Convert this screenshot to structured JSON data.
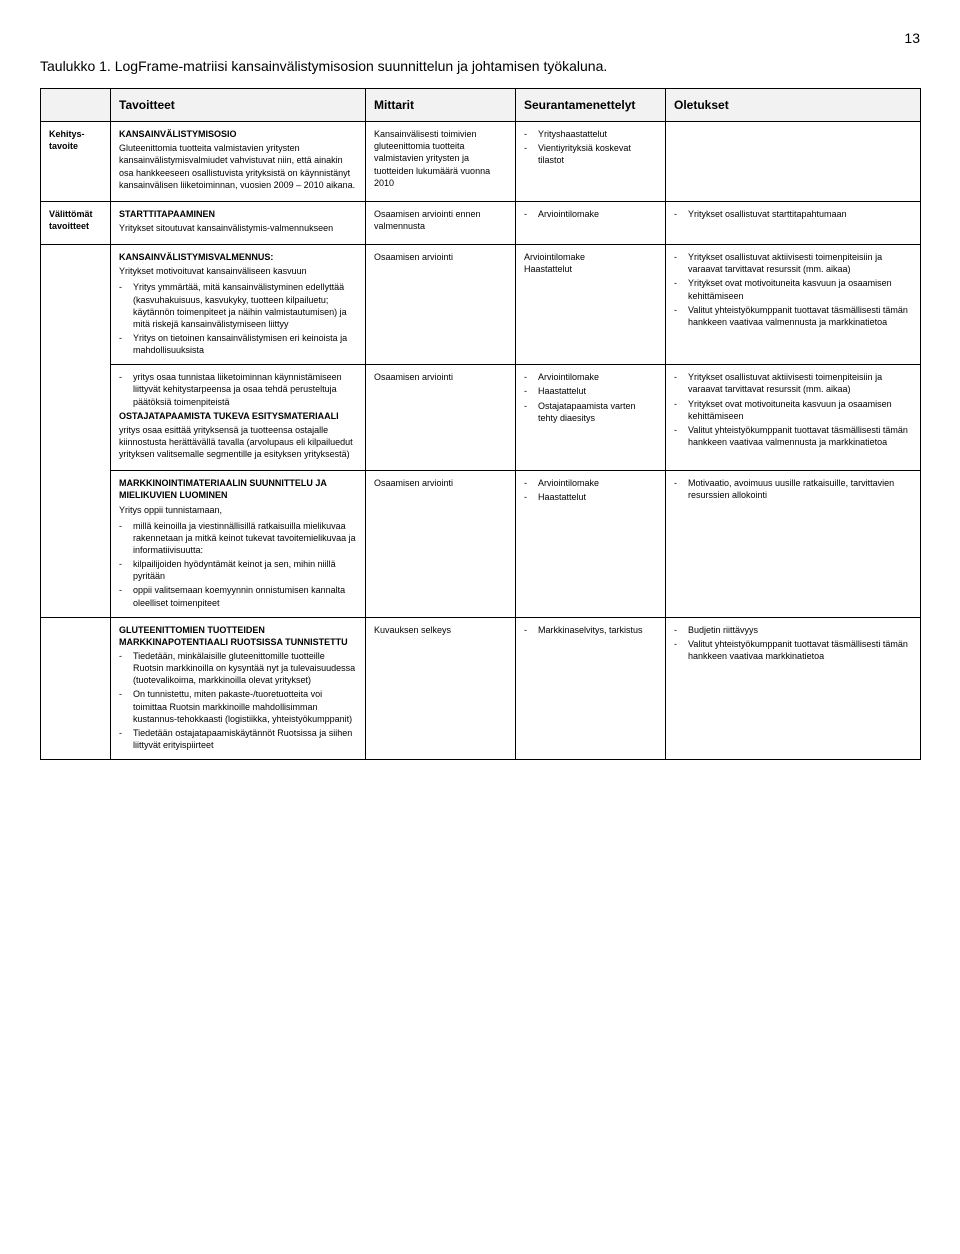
{
  "page_number": "13",
  "doc_title": "Taulukko 1. LogFrame-matriisi kansainvälistymisosion suunnittelun ja johtamisen työkaluna.",
  "headers": {
    "blank": "",
    "tavoitteet": "Tavoitteet",
    "mittarit": "Mittarit",
    "seuranta": "Seurantamenettelyt",
    "oletukset": "Oletukset"
  },
  "rows": {
    "r1": {
      "label": "Kehitys-tavoite",
      "a_head": "KANSAINVÄLISTYMISOSIO",
      "a_body": "Gluteenittomia tuotteita valmistavien yritysten kansainvälistymisvalmiudet vahvistuvat niin, että ainakin osa hankkeeseen osallistuvista yrityksistä on käynnistänyt kansainvälisen liiketoiminnan, vuosien 2009 – 2010 aikana.",
      "b": "Kansainvälisesti toimivien gluteenittomia tuotteita valmistavien yritysten ja tuotteiden lukumäärä vuonna 2010",
      "c_items": [
        "Yrityshaastattelut",
        "Vientiyrityksiä koskevat tilastot"
      ]
    },
    "r2": {
      "label": "Välittömät tavoitteet",
      "a_head": "STARTTITAPAAMINEN",
      "a_body": "Yritykset sitoutuvat kansainvälistymis-valmennukseen",
      "b": "Osaamisen arviointi ennen valmennusta",
      "c_items": [
        "Arviointilomake"
      ],
      "d_items": [
        "Yritykset osallistuvat starttitapahtumaan"
      ]
    },
    "r3": {
      "a_head": "KANSAINVÄLISTYMISVALMENNUS:",
      "a_intro": "Yritykset motivoituvat kansainväliseen kasvuun",
      "a_items": [
        "Yritys ymmärtää, mitä kansainvälistyminen edellyttää (kasvuhakuisuus, kasvukyky, tuotteen kilpailuetu; käytännön toimenpiteet ja näihin valmistautumisen) ja mitä riskejä kansainvälistymiseen liittyy",
        "Yritys on tietoinen kansainvälistymisen eri keinoista ja mahdollisuuksista"
      ],
      "b": "Osaamisen arviointi",
      "c_text": "Arviointilomake\nHaastattelut",
      "d_items": [
        "Yritykset osallistuvat aktiivisesti toimenpiteisiin ja varaavat tarvittavat resurssit (mm. aikaa)",
        "Yritykset ovat motivoituneita kasvuun ja osaamisen kehittämiseen",
        "Valitut yhteistyökumppanit tuottavat täsmällisesti tämän hankkeen vaativaa valmennusta ja markkinatietoa"
      ]
    },
    "r4": {
      "a_pre_items": [
        "yritys osaa tunnistaa liiketoiminnan käynnistämiseen liittyvät kehitystarpeensa ja osaa tehdä perusteltuja päätöksiä toimenpiteistä"
      ],
      "a_head": "OSTAJATAPAAMISTA TUKEVA ESITYSMATERIAALI",
      "a_body": "yritys osaa esittää yrityksensä ja tuotteensa ostajalle kiinnostusta herättävällä tavalla (arvolupaus eli kilpailuedut yrityksen valitsemalle segmentille ja esityksen yrityksestä)",
      "b": "Osaamisen arviointi",
      "c_items": [
        "Arviointilomake",
        "Haastattelut",
        "Ostajatapaamista varten tehty diaesitys"
      ],
      "d_items": [
        "Yritykset osallistuvat aktiivisesti toimenpiteisiin ja varaavat tarvittavat resurssit (mm. aikaa)",
        "Yritykset ovat motivoituneita kasvuun ja osaamisen kehittämiseen",
        "Valitut yhteistyökumppanit tuottavat täsmällisesti tämän hankkeen vaativaa valmennusta ja markkinatietoa"
      ]
    },
    "r5": {
      "a_head": "MARKKINOINTIMATERIAALIN SUUNNITTELU JA MIELIKUVIEN LUOMINEN",
      "a_intro": "Yritys oppii tunnistamaan,",
      "a_items": [
        "millä keinoilla ja viestinnällisillä ratkaisuilla mielikuvaa rakennetaan ja mitkä keinot tukevat tavoitemielikuvaa ja informatiivisuutta:",
        "kilpailijoiden hyödyntämät keinot ja sen, mihin niillä pyritään",
        "oppii valitsemaan koemyynnin onnistumisen kannalta oleelliset toimenpiteet"
      ],
      "b": "Osaamisen arviointi",
      "c_items": [
        "Arviointilomake",
        "Haastattelut"
      ],
      "d_items": [
        "Motivaatio, avoimuus uusille ratkaisuille, tarvittavien resurssien allokointi"
      ]
    },
    "r6": {
      "a_head": "GLUTEENITTOMIEN TUOTTEIDEN MARKKINAPOTENTIAALI RUOTSISSA TUNNISTETTU",
      "a_items": [
        "Tiedetään, minkälaisille gluteenittomille tuotteille Ruotsin markkinoilla on kysyntää nyt ja tulevaisuudessa (tuotevalikoima, markkinoilla olevat yritykset)",
        "On tunnistettu, miten pakaste-/tuoretuotteita voi toimittaa Ruotsin markkinoille mahdollisimman kustannus-tehokkaasti (logistiikka, yhteistyökumppanit)",
        "Tiedetään ostajatapaamiskäytännöt Ruotsissa ja siihen liittyvät erityispiirteet"
      ],
      "b": "Kuvauksen selkeys",
      "c_items": [
        "Markkinaselvitys, tarkistus"
      ],
      "d_items": [
        "Budjetin riittävyys",
        "Valitut yhteistyökumppanit tuottavat täsmällisesti tämän hankkeen vaativaa markkinatietoa"
      ]
    }
  }
}
